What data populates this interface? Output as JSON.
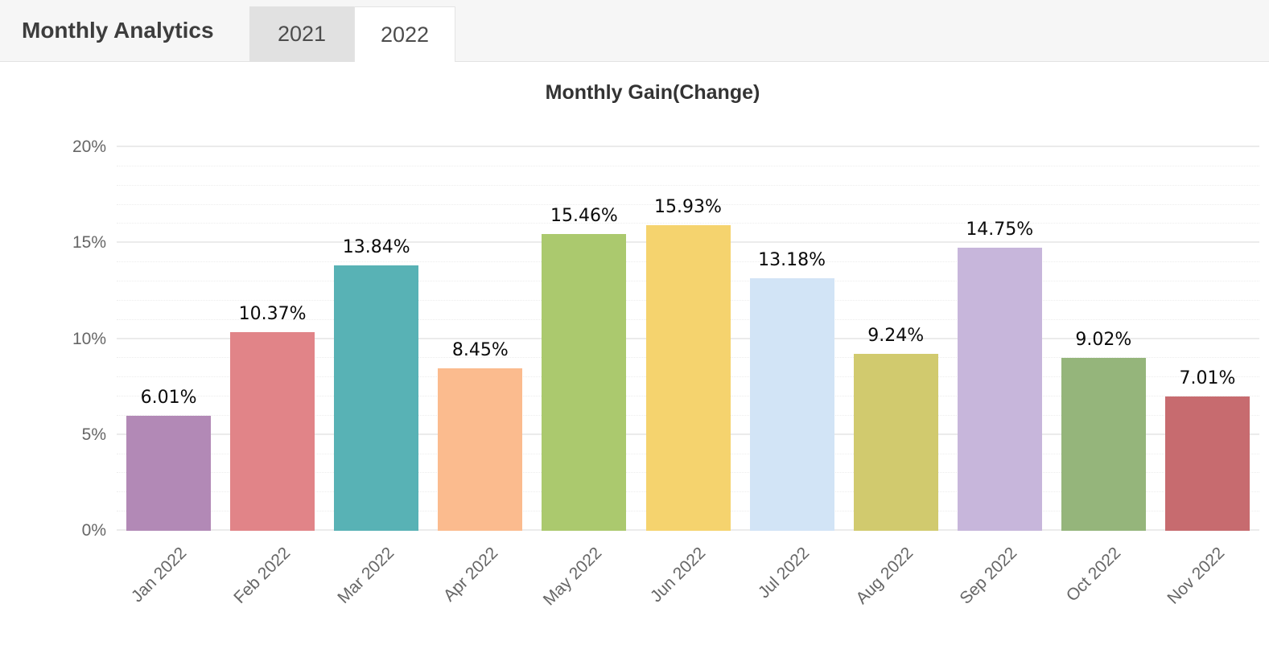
{
  "header": {
    "title": "Monthly Analytics",
    "tabs": [
      {
        "label": "2021",
        "active": false
      },
      {
        "label": "2022",
        "active": true
      }
    ]
  },
  "chart_data": {
    "type": "bar",
    "title": "Monthly Gain(Change)",
    "categories": [
      "Jan 2022",
      "Feb 2022",
      "Mar 2022",
      "Apr 2022",
      "May 2022",
      "Jun 2022",
      "Jul 2022",
      "Aug 2022",
      "Sep 2022",
      "Oct 2022",
      "Nov 2022"
    ],
    "values": [
      6.01,
      10.37,
      13.84,
      8.45,
      15.46,
      15.93,
      13.18,
      9.24,
      14.75,
      9.02,
      7.01
    ],
    "value_labels": [
      "6.01%",
      "10.37%",
      "13.84%",
      "8.45%",
      "15.46%",
      "15.93%",
      "13.18%",
      "9.24%",
      "14.75%",
      "9.02%",
      "7.01%"
    ],
    "bar_colors": [
      "#b289b6",
      "#e18488",
      "#58b2b5",
      "#fbbb8e",
      "#abc96e",
      "#f5d36e",
      "#d2e4f6",
      "#d1ca6e",
      "#c7b6db",
      "#95b57b",
      "#c76b6f"
    ],
    "ylim": [
      0,
      20
    ],
    "y_ticks": [
      {
        "value": 0,
        "label": "0%"
      },
      {
        "value": 5,
        "label": "5%"
      },
      {
        "value": 10,
        "label": "10%"
      },
      {
        "value": 15,
        "label": "15%"
      },
      {
        "value": 20,
        "label": "20%"
      }
    ],
    "minor_grid_step": 1,
    "major_grid_step": 5,
    "xlabel": "",
    "ylabel": "",
    "legend": "none",
    "grid": "horizontal; major solid, minor dotted"
  }
}
